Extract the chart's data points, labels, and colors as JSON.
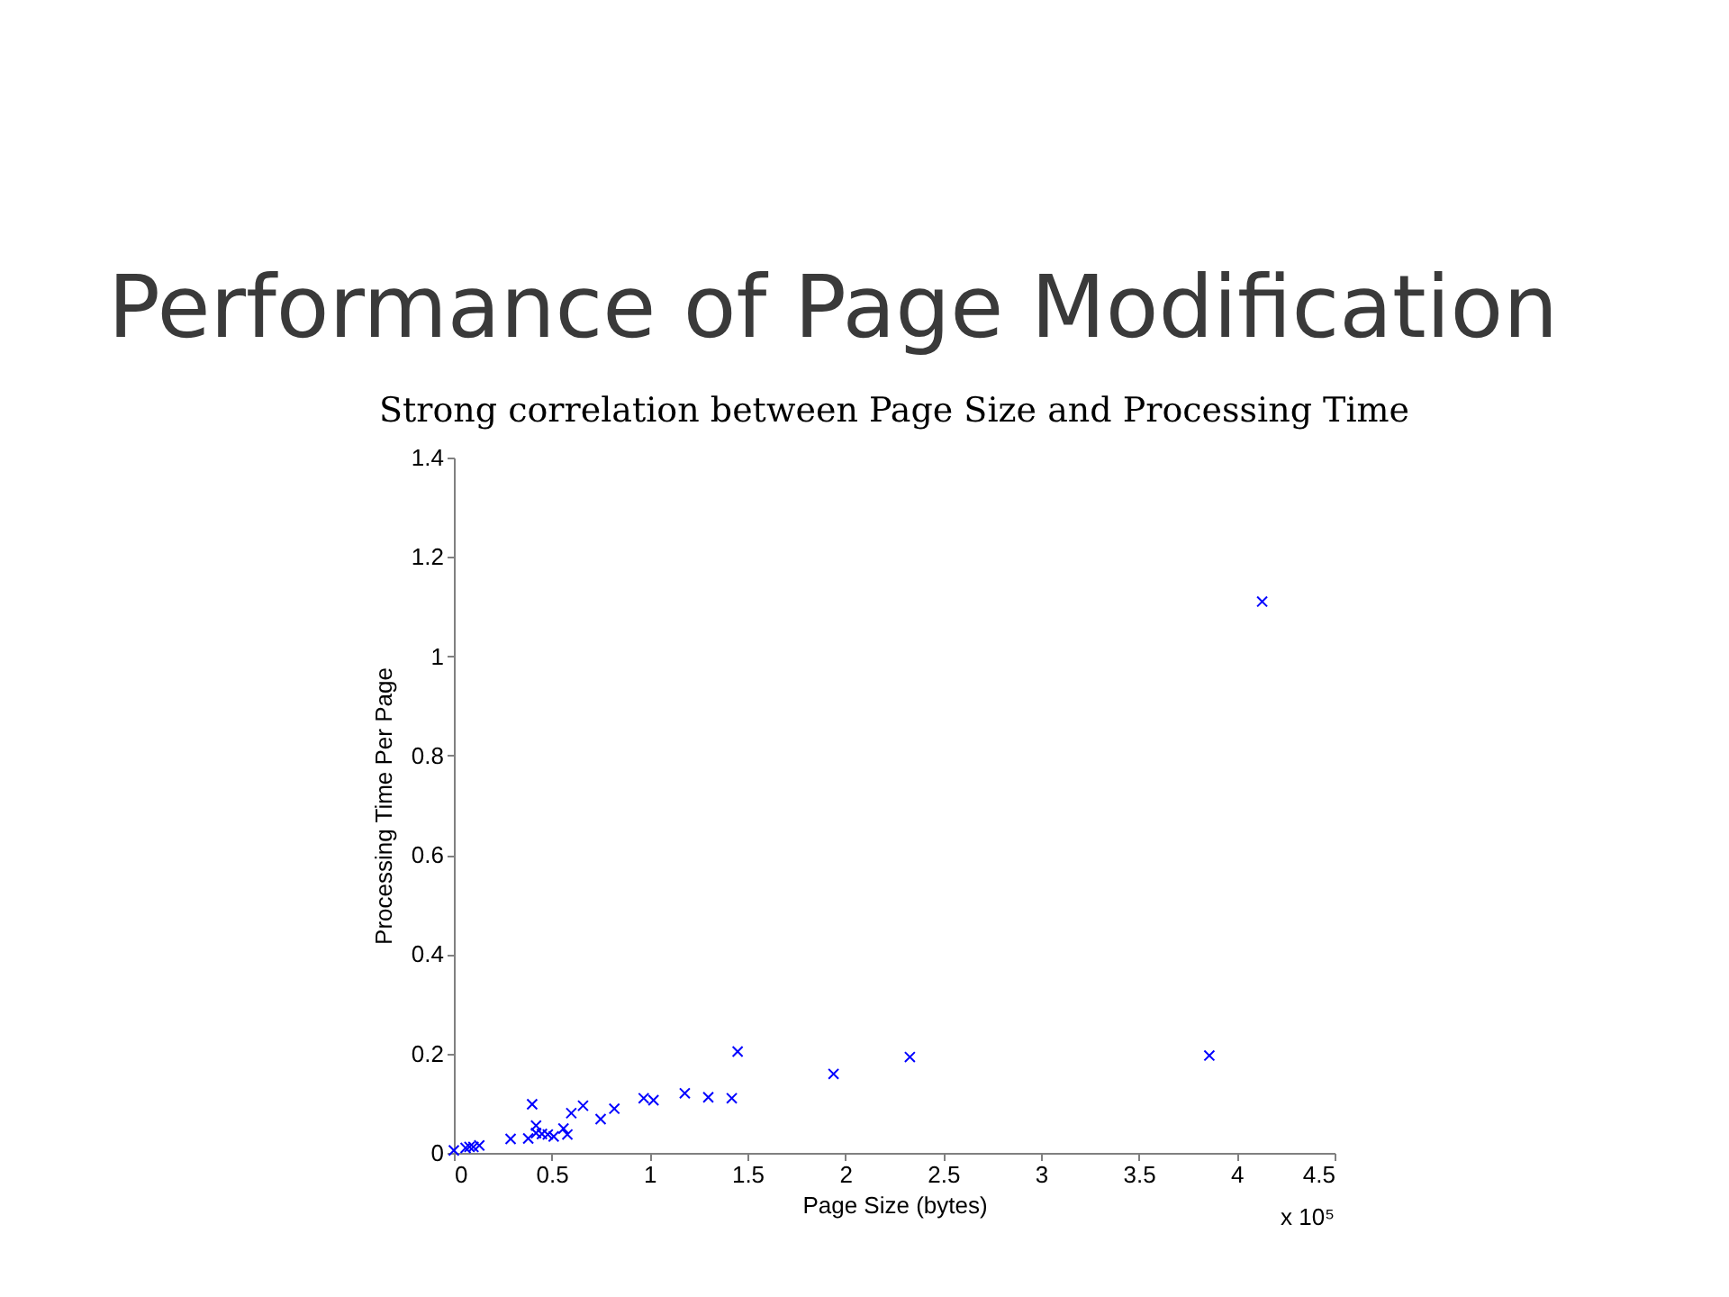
{
  "chart_data": {
    "type": "scatter",
    "title": "Performance of Page Modification",
    "subtitle": "Strong correlation between Page Size and Processing Time",
    "xlabel": "Page Size (bytes)",
    "ylabel": "Processing Time Per Page",
    "annotations": [
      "x 10⁵"
    ],
    "x": [
      0,
      0.06,
      0.08,
      0.1,
      0.13,
      0.29,
      0.38,
      0.4,
      0.42,
      0.42,
      0.45,
      0.48,
      0.51,
      0.56,
      0.58,
      0.6,
      0.66,
      0.75,
      0.82,
      0.97,
      1.02,
      1.18,
      1.3,
      1.42,
      1.45,
      1.94,
      2.33,
      3.86,
      4.13
    ],
    "series": [
      {
        "color": "#0000ff",
        "values": [
          0.005,
          0.01,
          0.012,
          0.012,
          0.015,
          0.028,
          0.029,
          0.098,
          0.055,
          0.04,
          0.038,
          0.037,
          0.033,
          0.049,
          0.037,
          0.08,
          0.095,
          0.068,
          0.089,
          0.11,
          0.106,
          0.12,
          0.112,
          0.11,
          0.204,
          0.159,
          0.193,
          0.196,
          1.11
        ]
      }
    ],
    "xlim": [
      0,
      4.5
    ],
    "ylim": [
      0,
      1.4
    ],
    "xticks": [
      0,
      0.5,
      1,
      1.5,
      2,
      2.5,
      3,
      3.5,
      4,
      4.5
    ],
    "yticks": [
      0,
      0.2,
      0.4,
      0.6,
      0.8,
      1,
      1.2,
      1.4
    ],
    "grid": false,
    "legend": false,
    "marker": "cross"
  }
}
